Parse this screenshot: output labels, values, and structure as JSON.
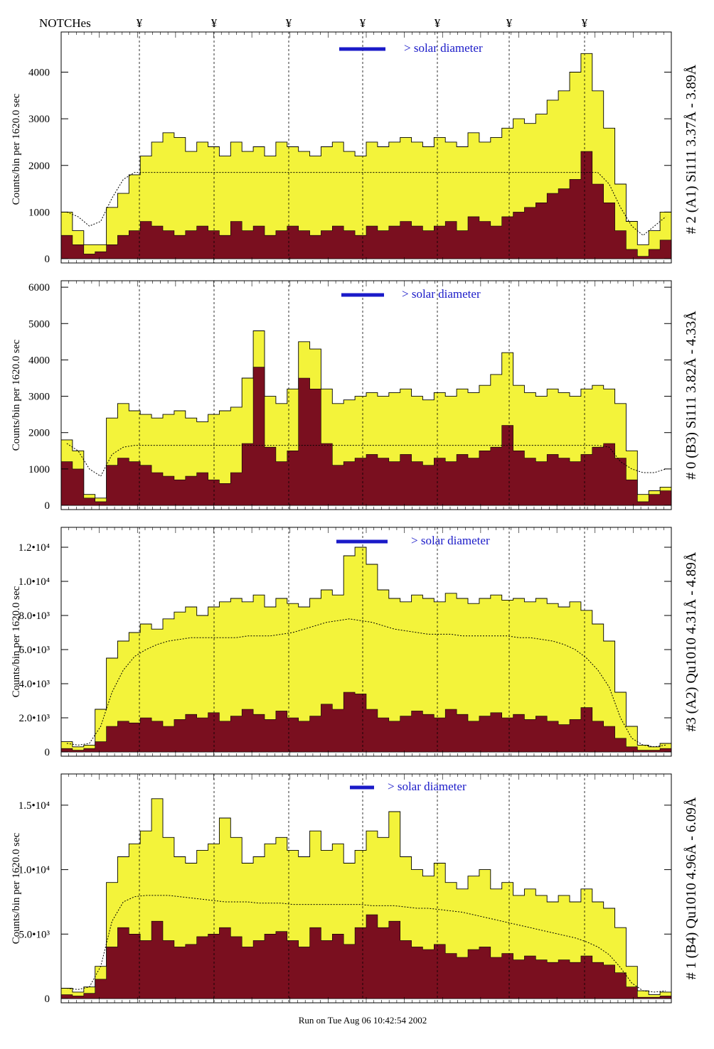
{
  "notches": {
    "label": "NOTCHes",
    "symbol": "¥",
    "count": 7
  },
  "footer": "Run on Tue Aug 06 10:42:54 2002",
  "colors": {
    "total": "#f3f33a",
    "line": "#7a0f1f",
    "solar_bar": "#1a1ac8"
  },
  "chart_data": [
    {
      "type": "area",
      "panel": "# 2 (A1) Si111  3.37Å - 3.89Å",
      "ylabel": "Counts/bin per   1620.0 sec",
      "annotation": "> solar diameter",
      "ylim": [
        0,
        4800
      ],
      "yticks": [
        0,
        1000,
        2000,
        3000,
        4000
      ],
      "ytick_labels": [
        "0",
        "1000",
        "2000",
        "3000",
        "4000"
      ],
      "series": [
        {
          "values": [
            1000,
            600,
            300,
            300,
            1100,
            1400,
            1800,
            2200,
            2500,
            2700,
            2600,
            2300,
            2500,
            2400,
            2200,
            2500,
            2300,
            2400,
            2200,
            2500,
            2400,
            2300,
            2200,
            2400,
            2500,
            2300,
            2200,
            2500,
            2400,
            2500,
            2600,
            2500,
            2400,
            2600,
            2500,
            2400,
            2700,
            2500,
            2600,
            2800,
            3000,
            2900,
            3100,
            3400,
            3600,
            4000,
            4400,
            3600,
            2800,
            1600,
            800,
            300,
            600,
            1000
          ]
        },
        {
          "values": [
            500,
            300,
            100,
            150,
            300,
            500,
            600,
            800,
            700,
            600,
            500,
            600,
            700,
            600,
            500,
            800,
            600,
            700,
            500,
            600,
            700,
            600,
            500,
            600,
            700,
            600,
            500,
            700,
            600,
            700,
            800,
            700,
            600,
            700,
            800,
            600,
            900,
            800,
            700,
            900,
            1000,
            1100,
            1200,
            1400,
            1500,
            1700,
            2300,
            1600,
            1200,
            600,
            200,
            50,
            200,
            400
          ]
        },
        {
          "values": [
            1000,
            900,
            700,
            800,
            1300,
            1700,
            1850,
            1850,
            1850,
            1850,
            1850,
            1850,
            1850,
            1850,
            1850,
            1850,
            1850,
            1850,
            1850,
            1850,
            1850,
            1850,
            1850,
            1850,
            1850,
            1850,
            1850,
            1850,
            1850,
            1850,
            1850,
            1850,
            1850,
            1850,
            1850,
            1850,
            1850,
            1850,
            1850,
            1850,
            1850,
            1850,
            1850,
            1850,
            1850,
            1850,
            1850,
            1850,
            1600,
            1100,
            700,
            500,
            700,
            900
          ]
        }
      ]
    },
    {
      "type": "area",
      "panel": "# 0 (B3) Si111  3.82Å - 4.33Å",
      "ylabel": "Counts/bin per   1620.0 sec",
      "annotation": "> solar diameter",
      "ylim": [
        0,
        6100
      ],
      "yticks": [
        0,
        1000,
        2000,
        3000,
        4000,
        5000,
        6000
      ],
      "ytick_labels": [
        "0",
        "1000",
        "2000",
        "3000",
        "4000",
        "5000",
        "6000"
      ],
      "series": [
        {
          "values": [
            1800,
            1500,
            300,
            200,
            2400,
            2800,
            2600,
            2500,
            2400,
            2500,
            2600,
            2400,
            2300,
            2500,
            2600,
            2700,
            3500,
            4800,
            3000,
            2800,
            3200,
            4500,
            4300,
            3200,
            2800,
            2900,
            3000,
            3100,
            3000,
            3100,
            3200,
            3000,
            2900,
            3100,
            3000,
            3200,
            3100,
            3300,
            3600,
            4200,
            3300,
            3100,
            3000,
            3200,
            3100,
            3000,
            3200,
            3300,
            3200,
            2800,
            1500,
            300,
            400,
            500
          ]
        },
        {
          "values": [
            1200,
            1000,
            200,
            100,
            1100,
            1300,
            1200,
            1100,
            900,
            800,
            700,
            800,
            900,
            700,
            600,
            900,
            1700,
            3800,
            1600,
            1200,
            1500,
            3500,
            3200,
            1700,
            1100,
            1200,
            1300,
            1400,
            1300,
            1200,
            1400,
            1200,
            1100,
            1300,
            1200,
            1400,
            1300,
            1500,
            1600,
            2200,
            1500,
            1300,
            1200,
            1400,
            1300,
            1200,
            1400,
            1600,
            1700,
            1300,
            700,
            100,
            300,
            400
          ]
        },
        {
          "values": [
            1700,
            1500,
            1000,
            800,
            1400,
            1600,
            1650,
            1650,
            1650,
            1650,
            1650,
            1650,
            1650,
            1650,
            1650,
            1650,
            1650,
            1650,
            1650,
            1650,
            1650,
            1650,
            1650,
            1650,
            1650,
            1650,
            1650,
            1650,
            1650,
            1650,
            1650,
            1650,
            1650,
            1650,
            1650,
            1650,
            1650,
            1650,
            1650,
            1650,
            1650,
            1650,
            1650,
            1650,
            1650,
            1650,
            1650,
            1650,
            1600,
            1200,
            1000,
            900,
            900,
            1000
          ]
        }
      ]
    },
    {
      "type": "area",
      "panel": "#3 (A2) Qu1010  4.31Å - 4.89Å",
      "ylabel": "Counts/bin per   1620.0 sec",
      "annotation": "> solar diameter",
      "ylim": [
        0,
        13000
      ],
      "yticks": [
        0,
        2000,
        4000,
        6000,
        8000,
        10000,
        12000
      ],
      "ytick_labels": [
        "0",
        "2.0•10³",
        "4.0•10³",
        "6.0•10³",
        "8.0•10³",
        "1.0•10⁴",
        "1.2•10⁴"
      ],
      "series": [
        {
          "values": [
            600,
            300,
            400,
            2500,
            5500,
            6500,
            7000,
            7500,
            7200,
            7800,
            8200,
            8500,
            8000,
            8500,
            8800,
            9000,
            8800,
            9200,
            8500,
            9000,
            8700,
            8500,
            9000,
            9500,
            9200,
            11500,
            12000,
            11000,
            9500,
            9000,
            8800,
            9200,
            9000,
            8800,
            9300,
            9000,
            8700,
            9000,
            9200,
            8900,
            9000,
            8800,
            9000,
            8700,
            8500,
            8800,
            8300,
            7500,
            6500,
            3500,
            1500,
            400,
            300,
            500
          ]
        },
        {
          "values": [
            200,
            100,
            200,
            600,
            1500,
            1800,
            1700,
            2000,
            1800,
            1500,
            1900,
            2200,
            2000,
            2300,
            1800,
            2100,
            2500,
            2200,
            1900,
            2400,
            2000,
            1800,
            2100,
            2800,
            2500,
            3500,
            3400,
            2500,
            2000,
            1800,
            2100,
            2400,
            2200,
            2000,
            2500,
            2200,
            1800,
            2100,
            2300,
            2000,
            2200,
            1900,
            2100,
            1800,
            1600,
            1900,
            2600,
            1800,
            1500,
            800,
            300,
            100,
            100,
            200
          ]
        },
        {
          "values": [
            500,
            400,
            500,
            1500,
            3500,
            4800,
            5600,
            6000,
            6300,
            6500,
            6600,
            6700,
            6700,
            6700,
            6700,
            6700,
            6800,
            6800,
            6800,
            6900,
            7000,
            7200,
            7400,
            7600,
            7700,
            7800,
            7700,
            7600,
            7400,
            7200,
            7100,
            7000,
            6900,
            6900,
            6900,
            6800,
            6800,
            6800,
            6800,
            6800,
            6700,
            6700,
            6600,
            6500,
            6300,
            6000,
            5500,
            4800,
            3800,
            2000,
            800,
            400,
            300,
            400
          ]
        }
      ]
    },
    {
      "type": "area",
      "panel": "# 1 (B4) Qu1010 4.96Å - 6.09Å",
      "ylabel": "Counts/bin per   1620.0 sec",
      "annotation": "> solar diameter",
      "ylim": [
        0,
        17200
      ],
      "yticks": [
        0,
        5000,
        10000,
        15000
      ],
      "ytick_labels": [
        "0",
        "5.0•10³",
        "1.0•10⁴",
        "1.5•10⁴"
      ],
      "series": [
        {
          "values": [
            800,
            500,
            900,
            2500,
            9000,
            11000,
            12000,
            13000,
            15500,
            12500,
            11000,
            10500,
            11500,
            12000,
            14000,
            12500,
            10500,
            11000,
            12000,
            12500,
            11500,
            11000,
            13000,
            11500,
            12000,
            10500,
            11500,
            13000,
            12500,
            14500,
            11000,
            10000,
            9500,
            10500,
            9000,
            8500,
            9500,
            10000,
            8500,
            9000,
            8000,
            8500,
            8000,
            7500,
            8000,
            7500,
            8500,
            7500,
            7000,
            5500,
            2500,
            600,
            300,
            500
          ]
        },
        {
          "values": [
            300,
            200,
            400,
            1500,
            4000,
            5500,
            5000,
            4500,
            6000,
            4500,
            4000,
            4200,
            4800,
            5000,
            5500,
            4800,
            4000,
            4500,
            5000,
            5200,
            4500,
            4000,
            5500,
            4500,
            5000,
            4200,
            5500,
            6500,
            5500,
            6000,
            4500,
            4000,
            3800,
            4200,
            3500,
            3200,
            3800,
            4000,
            3200,
            3500,
            3000,
            3300,
            3000,
            2800,
            3000,
            2800,
            3300,
            2800,
            2600,
            2000,
            900,
            100,
            100,
            200
          ]
        },
        {
          "values": [
            800,
            700,
            900,
            2500,
            6000,
            7500,
            7900,
            8000,
            8000,
            8000,
            7900,
            7800,
            7700,
            7600,
            7500,
            7500,
            7500,
            7400,
            7400,
            7400,
            7300,
            7300,
            7300,
            7300,
            7300,
            7300,
            7300,
            7200,
            7200,
            7200,
            7100,
            7000,
            7000,
            6900,
            6800,
            6700,
            6500,
            6300,
            6100,
            5900,
            5700,
            5500,
            5300,
            5100,
            4900,
            4700,
            4400,
            4000,
            3400,
            2400,
            1200,
            600,
            500,
            600
          ]
        }
      ]
    }
  ]
}
